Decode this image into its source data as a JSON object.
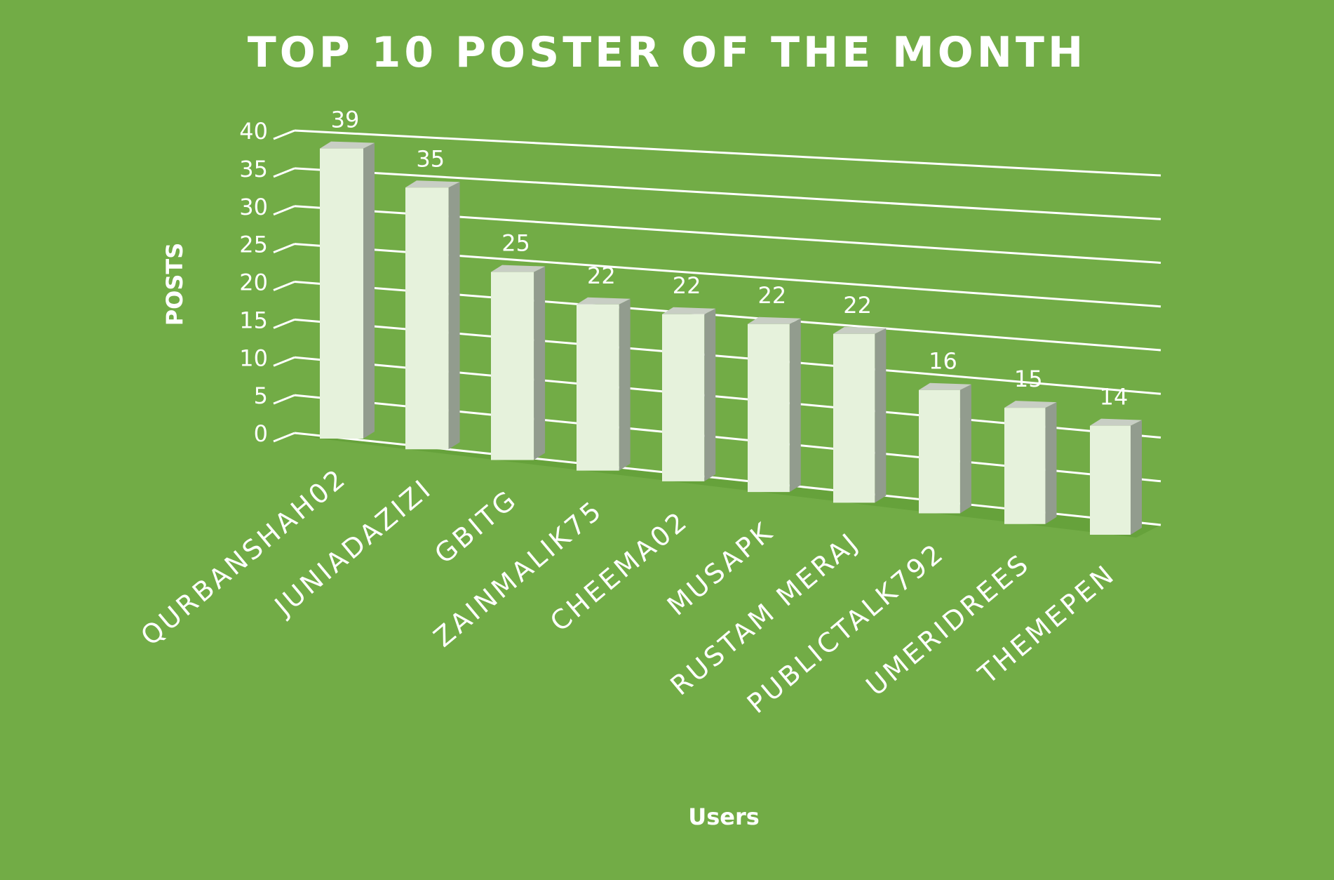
{
  "chart_data": {
    "type": "bar",
    "title": "TOP 10 POSTER OF THE MONTH",
    "xlabel": "Users",
    "ylabel": "POSTS",
    "categories": [
      "QURBANSHAH02",
      "JUNIADAZIZI",
      "GBITG",
      "ZAINMALIK75",
      "CHEEMA02",
      "MUSAPK",
      "RUSTAM MERAJ",
      "PUBLICTALK792",
      "UMERIDREES",
      "THEMEPEN"
    ],
    "values": [
      39,
      35,
      25,
      22,
      22,
      22,
      22,
      16,
      15,
      14
    ],
    "ylim": [
      0,
      40
    ],
    "yticks": [
      0,
      5,
      10,
      15,
      20,
      25,
      30,
      35,
      40
    ],
    "grid": true,
    "style_3d": true,
    "colors": {
      "background": "#72ac46",
      "bar_front": "#e6f2dc",
      "bar_side": "#929c8e",
      "bar_top": "#c8cec4",
      "gridline": "#ffffff",
      "text": "#ffffff"
    }
  }
}
